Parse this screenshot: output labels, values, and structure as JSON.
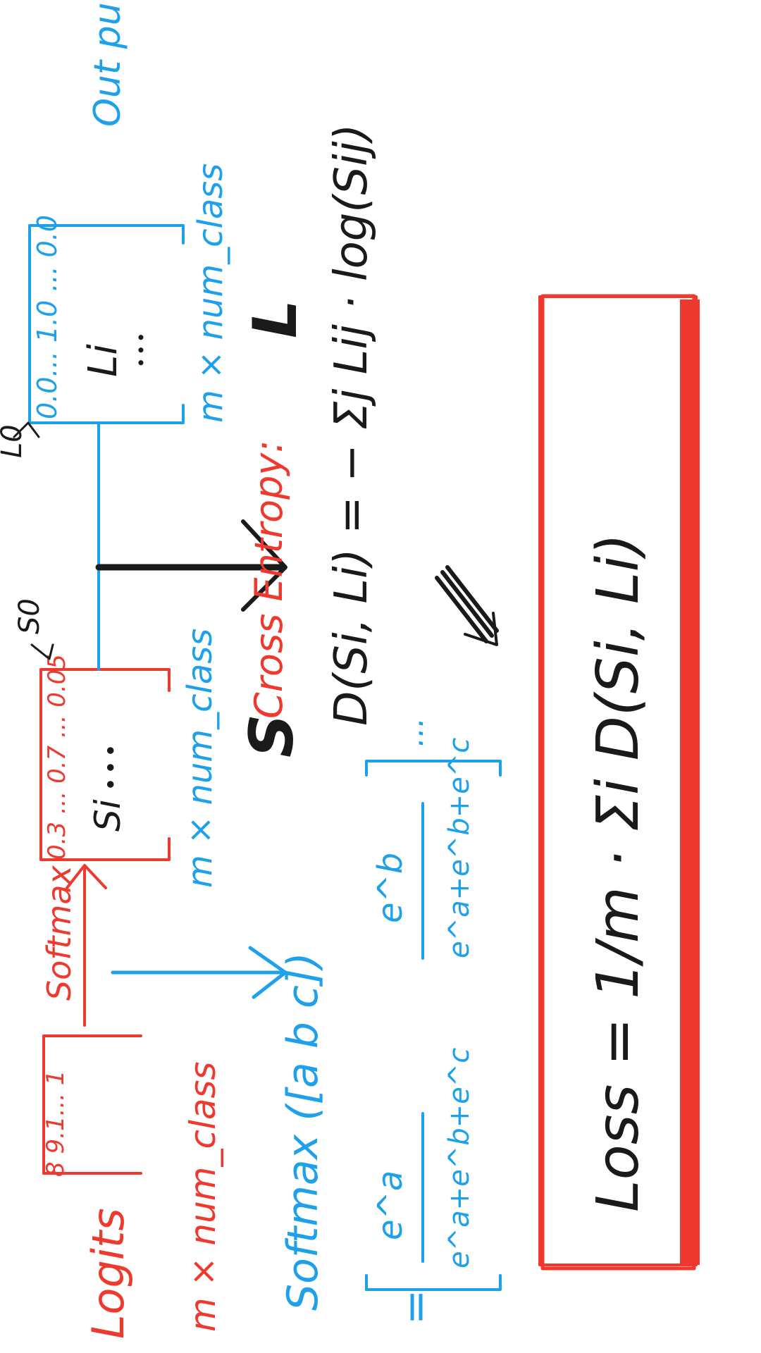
{
  "colors": {
    "logits": "#ee3a2e",
    "softmax_output": "#ee3a2e",
    "labels": "#1ea1ea",
    "softmax_formula": "#1ea1ea",
    "cross_entropy_title": "#ee3a2e",
    "loss_box": "#ee3a2e",
    "equations": "#1a1a1a"
  },
  "logits": {
    "title": "Logits",
    "values": "8 9.1... 1",
    "dims": "m × num_class"
  },
  "softmax_arrow_label": "Softmax",
  "softmax_output": {
    "values": "0.3 ... 0.7 ... 0.05",
    "row": "Si",
    "dims": "m × num_class",
    "letter": "S",
    "pointer": "S0"
  },
  "labels": {
    "values": "0.0... 1.0 ... 0.0",
    "row": "Li",
    "dims": "m × num_class",
    "letter": "L",
    "pointer": "L0",
    "side_label": "Out put"
  },
  "softmax_formula": {
    "call": "Softmax ([a b c])",
    "equals": "=",
    "num1": "e^a",
    "den1": "e^a+e^b+e^c",
    "num2": "e^b",
    "den2": "e^a+e^b+e^c",
    "dots": "..."
  },
  "cross_entropy": {
    "title": "Cross Entropy:",
    "formula": "D(Si, Li) = − Σj Lij · log(Sij)"
  },
  "loss": {
    "formula": "Loss = 1/m · Σi D(Si, Li)"
  }
}
